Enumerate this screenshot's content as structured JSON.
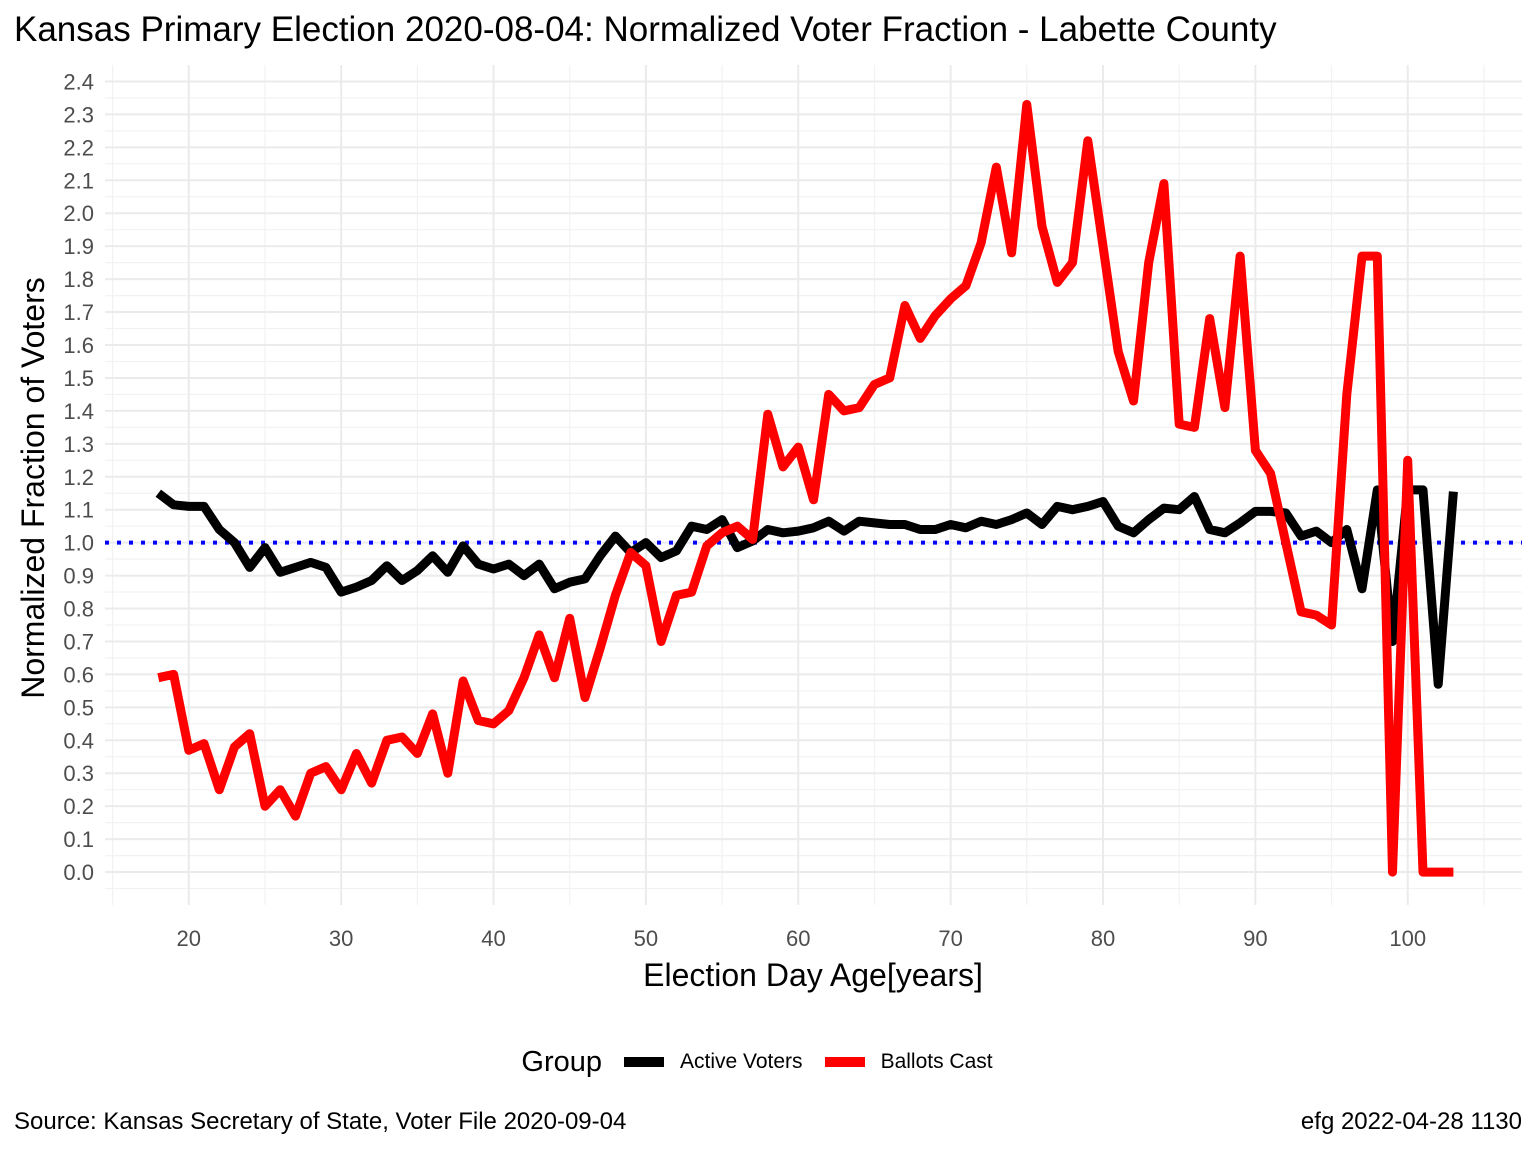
{
  "title": "Kansas Primary Election 2020-08-04:  Normalized Voter Fraction - Labette County",
  "caption_left": "Source:  Kansas Secretary of State, Voter File  2020-09-04",
  "caption_right": "efg 2022-04-28 1130",
  "chart_data": {
    "type": "line",
    "xlabel": "Election Day Age[years]",
    "ylabel": "Normalized Fraction of Voters",
    "xlim": [
      14.5,
      107.5
    ],
    "ylim": [
      -0.1,
      2.45
    ],
    "x_ticks": [
      20,
      30,
      40,
      50,
      60,
      70,
      80,
      90,
      100
    ],
    "y_ticks": [
      0.0,
      0.1,
      0.2,
      0.3,
      0.4,
      0.5,
      0.6,
      0.7,
      0.8,
      0.9,
      1.0,
      1.1,
      1.2,
      1.3,
      1.4,
      1.5,
      1.6,
      1.7,
      1.8,
      1.9,
      2.0,
      2.1,
      2.2,
      2.3,
      2.4
    ],
    "reference_line": {
      "y": 1.0,
      "color": "#0000ff",
      "style": "dotted"
    },
    "grid": true,
    "legend": {
      "title": "Group",
      "position": "bottom"
    },
    "series": [
      {
        "name": "Active Voters",
        "color": "#000000",
        "x": [
          18,
          19,
          20,
          21,
          22,
          23,
          24,
          25,
          26,
          27,
          28,
          29,
          30,
          31,
          32,
          33,
          34,
          35,
          36,
          37,
          38,
          39,
          40,
          41,
          42,
          43,
          44,
          45,
          46,
          47,
          48,
          49,
          50,
          51,
          52,
          53,
          54,
          55,
          56,
          57,
          58,
          59,
          60,
          61,
          62,
          63,
          64,
          65,
          66,
          67,
          68,
          69,
          70,
          71,
          72,
          73,
          74,
          75,
          76,
          77,
          78,
          79,
          80,
          81,
          82,
          83,
          84,
          85,
          86,
          87,
          88,
          89,
          90,
          91,
          92,
          93,
          94,
          95,
          96,
          97,
          98,
          99,
          100,
          101,
          102,
          103
        ],
        "y": [
          1.15,
          1.115,
          1.11,
          1.11,
          1.04,
          1.0,
          0.925,
          0.985,
          0.91,
          0.925,
          0.94,
          0.925,
          0.85,
          0.865,
          0.885,
          0.93,
          0.885,
          0.915,
          0.96,
          0.91,
          0.99,
          0.935,
          0.92,
          0.935,
          0.9,
          0.935,
          0.86,
          0.88,
          0.89,
          0.96,
          1.02,
          0.97,
          1.0,
          0.955,
          0.975,
          1.05,
          1.04,
          1.07,
          0.985,
          1.005,
          1.04,
          1.03,
          1.035,
          1.045,
          1.065,
          1.035,
          1.065,
          1.06,
          1.055,
          1.055,
          1.04,
          1.04,
          1.055,
          1.045,
          1.065,
          1.055,
          1.07,
          1.09,
          1.055,
          1.11,
          1.1,
          1.11,
          1.125,
          1.05,
          1.03,
          1.07,
          1.105,
          1.1,
          1.14,
          1.04,
          1.03,
          1.06,
          1.095,
          1.095,
          1.09,
          1.02,
          1.035,
          1.0,
          1.04,
          0.86,
          1.16,
          0.7,
          1.16,
          1.16,
          0.57,
          1.155
        ]
      },
      {
        "name": "Ballots Cast",
        "color": "#ff0000",
        "x": [
          18,
          19,
          20,
          21,
          22,
          23,
          24,
          25,
          26,
          27,
          28,
          29,
          30,
          31,
          32,
          33,
          34,
          35,
          36,
          37,
          38,
          39,
          40,
          41,
          42,
          43,
          44,
          45,
          46,
          47,
          48,
          49,
          50,
          51,
          52,
          53,
          54,
          55,
          56,
          57,
          58,
          59,
          60,
          61,
          62,
          63,
          64,
          65,
          66,
          67,
          68,
          69,
          70,
          71,
          72,
          73,
          74,
          75,
          76,
          77,
          78,
          79,
          80,
          81,
          82,
          83,
          84,
          85,
          86,
          87,
          88,
          89,
          90,
          91,
          92,
          93,
          94,
          95,
          96,
          97,
          98,
          99,
          100,
          101,
          102,
          103
        ],
        "y": [
          0.59,
          0.6,
          0.37,
          0.39,
          0.25,
          0.38,
          0.42,
          0.2,
          0.25,
          0.17,
          0.3,
          0.32,
          0.25,
          0.36,
          0.27,
          0.4,
          0.41,
          0.36,
          0.48,
          0.3,
          0.58,
          0.46,
          0.45,
          0.49,
          0.59,
          0.72,
          0.59,
          0.77,
          0.53,
          0.68,
          0.84,
          0.97,
          0.93,
          0.7,
          0.84,
          0.85,
          0.99,
          1.03,
          1.05,
          1.01,
          1.39,
          1.23,
          1.29,
          1.13,
          1.45,
          1.4,
          1.41,
          1.48,
          1.5,
          1.72,
          1.62,
          1.69,
          1.74,
          1.78,
          1.91,
          2.14,
          1.88,
          2.33,
          1.96,
          1.79,
          1.85,
          2.22,
          1.9,
          1.58,
          1.43,
          1.85,
          2.09,
          1.36,
          1.35,
          1.68,
          1.41,
          1.87,
          1.28,
          1.21,
          1.0,
          0.79,
          0.78,
          0.75,
          1.45,
          1.87,
          1.87,
          0.0,
          1.25,
          0.0,
          0.0,
          0.0
        ]
      }
    ]
  }
}
